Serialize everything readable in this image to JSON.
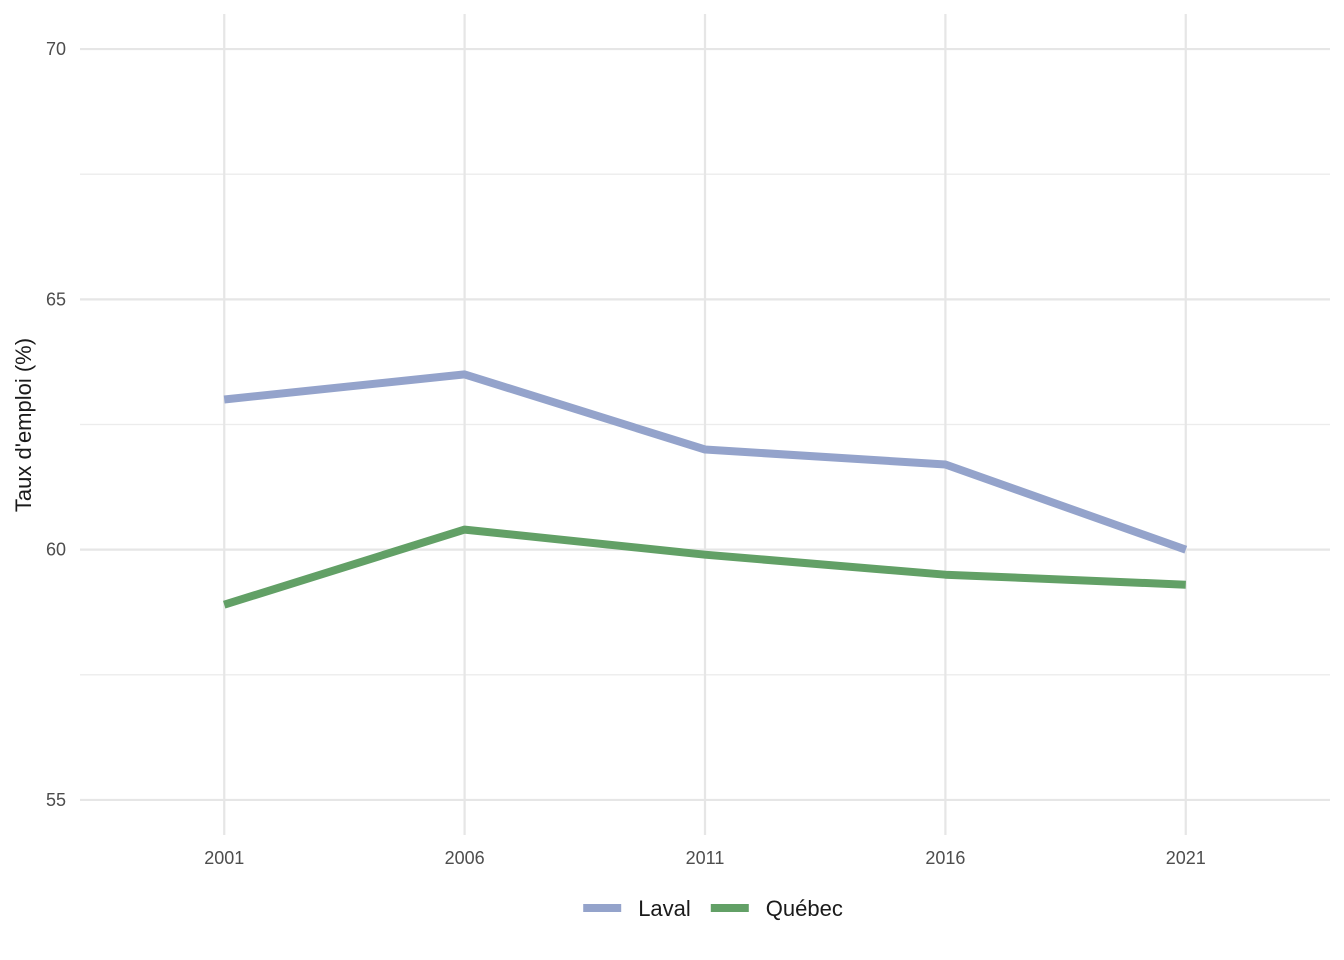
{
  "chart_data": {
    "type": "line",
    "title": "",
    "xlabel": "",
    "ylabel": "Taux d'emploi (%)",
    "x": [
      2001,
      2006,
      2011,
      2016,
      2021
    ],
    "xlim": [
      1998,
      2024
    ],
    "ylim": [
      54.3,
      70.7
    ],
    "y_ticks": [
      55,
      60,
      65,
      70
    ],
    "y_minor_ticks": [
      57.5,
      62.5,
      67.5
    ],
    "x_ticks": [
      "2001",
      "2006",
      "2011",
      "2016",
      "2021"
    ],
    "grid": true,
    "legend_position": "bottom",
    "series": [
      {
        "name": "Laval",
        "color": "#94a3cb",
        "values": [
          63.0,
          63.5,
          62.0,
          61.7,
          60.0
        ]
      },
      {
        "name": "Québec",
        "color": "#62a066",
        "values": [
          58.9,
          60.4,
          59.9,
          59.5,
          59.3
        ]
      }
    ]
  }
}
